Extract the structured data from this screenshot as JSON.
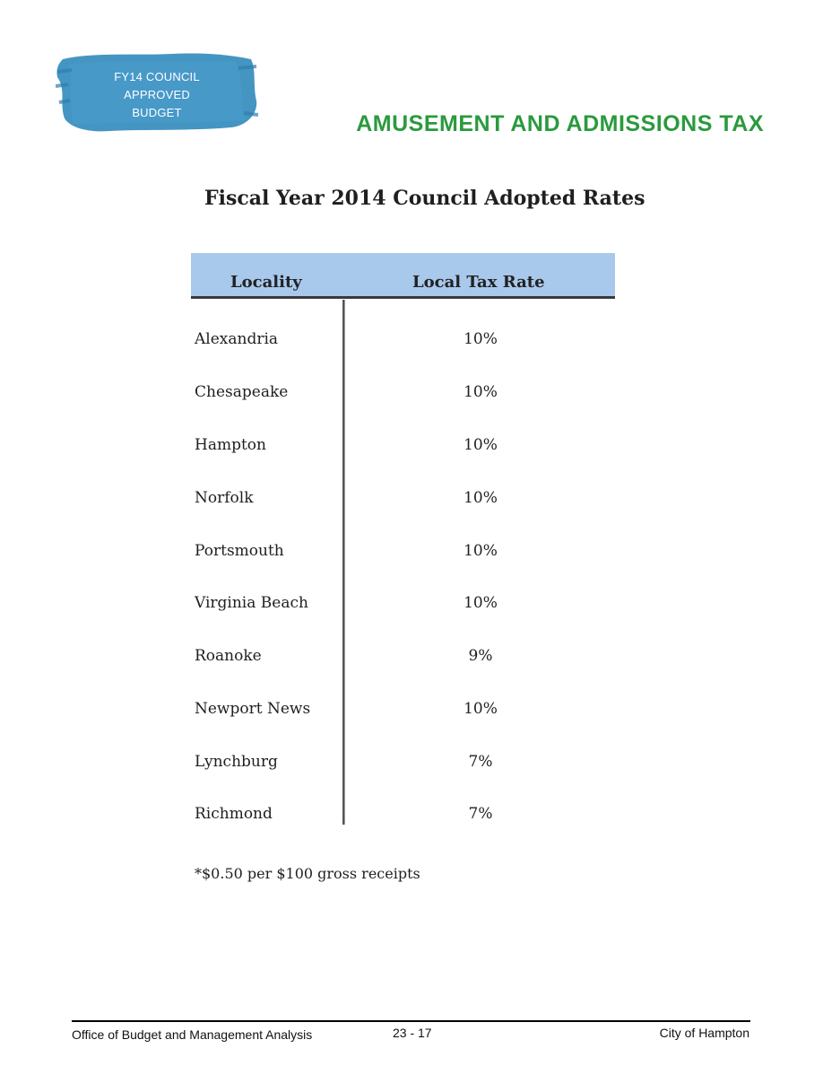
{
  "header": {
    "logo_lines": [
      "FY14 COUNCIL",
      "APPROVED",
      "BUDGET"
    ],
    "section_title": "AMUSEMENT AND ADMISSIONS TAX"
  },
  "table": {
    "title": "Fiscal Year 2014 Council Adopted Rates",
    "columns": [
      "Locality",
      "Local Tax Rate"
    ],
    "rows": [
      {
        "locality": "Alexandria",
        "rate": "10%"
      },
      {
        "locality": "Chesapeake",
        "rate": "10%"
      },
      {
        "locality": "Hampton",
        "rate": "10%"
      },
      {
        "locality": "Norfolk",
        "rate": "10%"
      },
      {
        "locality": "Portsmouth",
        "rate": "10%"
      },
      {
        "locality": "Virginia Beach",
        "rate": "10%"
      },
      {
        "locality": "Roanoke",
        "rate": "9%"
      },
      {
        "locality": "Newport News",
        "rate": "10%"
      },
      {
        "locality": "Lynchburg",
        "rate": "7%"
      },
      {
        "locality": "Richmond",
        "rate": "7%"
      }
    ],
    "footnote": "*$0.50 per $100 gross receipts"
  },
  "footer": {
    "left": "Office of Budget and Management Analysis",
    "center": "23 - 17",
    "right": "City of Hampton"
  },
  "colors": {
    "title_green": "#2a9a3e",
    "header_blue": "#a8c8ec",
    "logo_blue": "#3b8fbf"
  }
}
